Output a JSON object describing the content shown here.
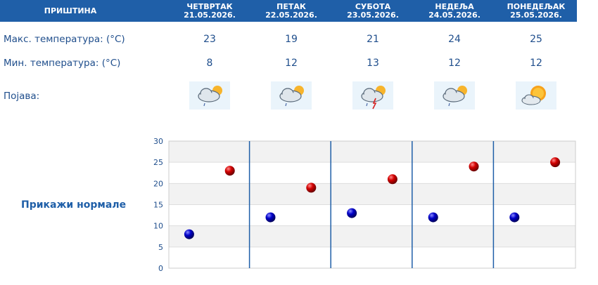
{
  "city": "ПРИШТИНА",
  "days": [
    {
      "name": "ЧЕТВРТАК",
      "date": "21.05.2026.",
      "max": "23",
      "min": "8",
      "icon": "cloud-sun-rain-icon"
    },
    {
      "name": "ПЕТАК",
      "date": "22.05.2026.",
      "max": "19",
      "min": "12",
      "icon": "cloud-sun-rain-icon"
    },
    {
      "name": "СУБОТА",
      "date": "23.05.2026.",
      "max": "21",
      "min": "13",
      "icon": "cloud-sun-thunder-icon"
    },
    {
      "name": "НЕДЕЉА",
      "date": "24.05.2026.",
      "max": "24",
      "min": "12",
      "icon": "cloud-sun-rain-icon"
    },
    {
      "name": "ПОНЕДЕЉАК",
      "date": "25.05.2026.",
      "max": "25",
      "min": "12",
      "icon": "sun-cloud-icon"
    }
  ],
  "labels": {
    "max": "Макс. температура: (°C)",
    "min": "Мин. температура: (°C)",
    "phenomenon": "Појава:"
  },
  "show_normals": "Прикажи нормале",
  "colors": {
    "header": "#1f5fa8",
    "max_marker": "#cc0000",
    "min_marker": "#0000aa",
    "separator": "#1f5fa8"
  },
  "chart_data": {
    "type": "scatter",
    "ylim": [
      0,
      30
    ],
    "yticks": [
      0,
      5,
      10,
      15,
      20,
      25,
      30
    ],
    "grid": true,
    "series": [
      {
        "values": [
          8,
          12,
          13,
          12,
          12
        ]
      },
      {
        "values": [
          23,
          19,
          21,
          24,
          25
        ]
      }
    ]
  }
}
